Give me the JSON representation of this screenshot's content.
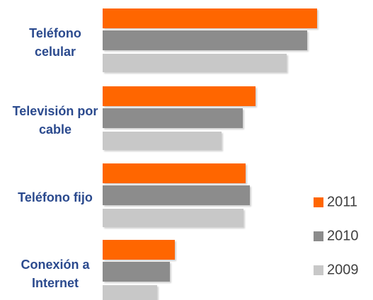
{
  "chart_data": {
    "type": "bar",
    "orientation": "horizontal",
    "categories": [
      "Teléfono celular",
      "Televisión por cable",
      "Teléfono fijo",
      "Conexión a Internet"
    ],
    "series": [
      {
        "name": "2011",
        "color": "#ff6600",
        "values": [
          303,
          216,
          202,
          102
        ]
      },
      {
        "name": "2010",
        "color": "#8c8c8c",
        "values": [
          289,
          198,
          208,
          95
        ]
      },
      {
        "name": "2009",
        "color": "#c8c8c8",
        "values": [
          260,
          168,
          199,
          77
        ]
      }
    ],
    "xlim": [
      0,
      380
    ]
  }
}
